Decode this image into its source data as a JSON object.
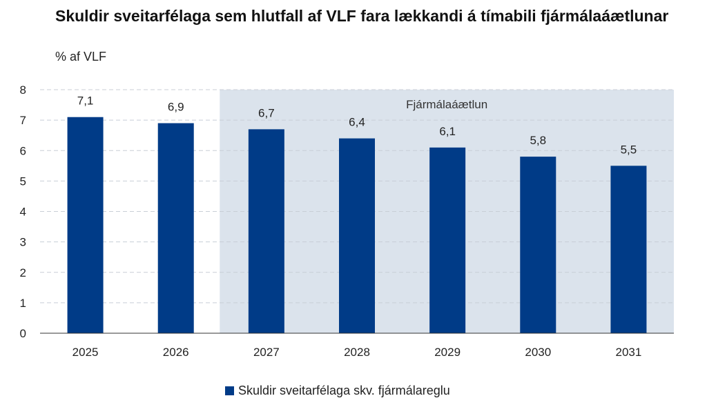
{
  "title": "Skuldir sveitarfélaga sem hlutfall af VLF fara lækkandi á tímabili fjármálaáætlunar",
  "subtitle": "% af VLF",
  "colors": {
    "bar": "#003b87",
    "band": "#dbe3ec",
    "grid": "#c8ced6"
  },
  "chart_data": {
    "type": "bar",
    "title": "Skuldir sveitarfélaga sem hlutfall af VLF fara lækkandi á tímabili fjármálaáætlunar",
    "ylabel": "% af VLF",
    "xlabel": "",
    "categories": [
      "2025",
      "2026",
      "2027",
      "2028",
      "2029",
      "2030",
      "2031"
    ],
    "series": [
      {
        "name": "Skuldir sveitarfélaga skv. fjármálareglu",
        "values": [
          7.1,
          6.9,
          6.7,
          6.4,
          6.1,
          5.8,
          5.5
        ]
      }
    ],
    "data_labels": [
      "7,1",
      "6,9",
      "6,7",
      "6,4",
      "6,1",
      "5,8",
      "5,5"
    ],
    "ylim": [
      0,
      8
    ],
    "yticks": [
      0,
      1,
      2,
      3,
      4,
      5,
      6,
      7,
      8
    ],
    "grid": true,
    "legend_position": "bottom",
    "shaded_region": {
      "label": "Fjármálaáætlun",
      "from_category": "2027",
      "to_category": "2031"
    }
  }
}
